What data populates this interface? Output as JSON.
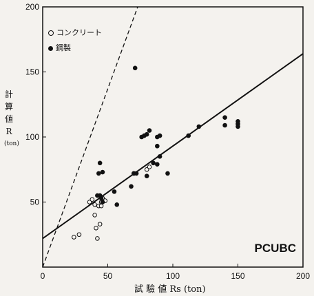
{
  "chart_data": {
    "type": "scatter",
    "title": "",
    "corner_label": "PCUBC",
    "xlabel": "試 驗 値 Rs (ton)",
    "ylabel_chars": [
      "計",
      "算",
      "値",
      "R",
      "(ton)"
    ],
    "xlim": [
      0,
      200
    ],
    "ylim": [
      0,
      200
    ],
    "xticks": [
      0,
      50,
      100,
      150,
      200
    ],
    "yticks": [
      50,
      100,
      150,
      200
    ],
    "grid": false,
    "legend_position": "top-left",
    "series": [
      {
        "name": "コンクリート",
        "marker": "open-circle",
        "points": [
          [
            24,
            23
          ],
          [
            28,
            25
          ],
          [
            36,
            50
          ],
          [
            38,
            52
          ],
          [
            40,
            48
          ],
          [
            40,
            40
          ],
          [
            41,
            30
          ],
          [
            42,
            22
          ],
          [
            43,
            47
          ],
          [
            44,
            33
          ],
          [
            45,
            50
          ],
          [
            45,
            47
          ],
          [
            46,
            53
          ],
          [
            48,
            51
          ],
          [
            70,
            72
          ],
          [
            80,
            75
          ],
          [
            82,
            77
          ]
        ]
      },
      {
        "name": "鋼製",
        "marker": "filled-circle",
        "points": [
          [
            42,
            55
          ],
          [
            43,
            72
          ],
          [
            44,
            80
          ],
          [
            46,
            73
          ],
          [
            44,
            55
          ],
          [
            45,
            53
          ],
          [
            46,
            50
          ],
          [
            55,
            58
          ],
          [
            57,
            48
          ],
          [
            68,
            62
          ],
          [
            70,
            72
          ],
          [
            72,
            72
          ],
          [
            71,
            153
          ],
          [
            76,
            100
          ],
          [
            78,
            101
          ],
          [
            80,
            102
          ],
          [
            82,
            105
          ],
          [
            80,
            70
          ],
          [
            85,
            80
          ],
          [
            88,
            100
          ],
          [
            88,
            93
          ],
          [
            88,
            79
          ],
          [
            90,
            85
          ],
          [
            90,
            101
          ],
          [
            96,
            72
          ],
          [
            112,
            101
          ],
          [
            120,
            108
          ],
          [
            140,
            115
          ],
          [
            140,
            109
          ],
          [
            150,
            112
          ],
          [
            150,
            110
          ],
          [
            150,
            108
          ]
        ]
      }
    ],
    "lines": [
      {
        "type": "dashed",
        "x": [
          0,
          73
        ],
        "y": [
          0,
          200
        ]
      },
      {
        "type": "solid",
        "x": [
          0,
          200
        ],
        "y": [
          22,
          164
        ]
      }
    ]
  }
}
